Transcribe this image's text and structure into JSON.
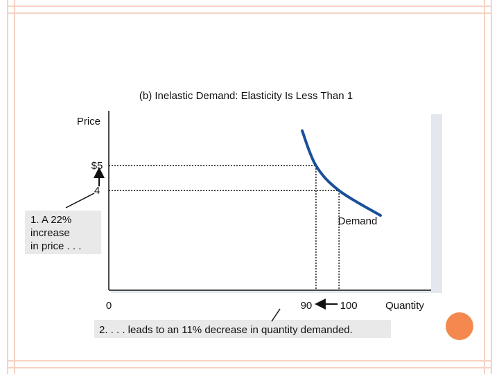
{
  "chart_data": {
    "type": "line",
    "title": "(b) Inelastic Demand: Elasticity Is Less Than 1",
    "ylabel": "Price",
    "xlabel": "Quantity",
    "origin_label": "0",
    "series": [
      {
        "name": "Demand",
        "color": "#1a4f9a",
        "points": [
          {
            "x": 84,
            "y": 6.4
          },
          {
            "x": 90,
            "y": 5.0
          },
          {
            "x": 100,
            "y": 4.0
          },
          {
            "x": 118,
            "y": 3.0
          }
        ]
      }
    ],
    "ylim": [
      0,
      7.2
    ],
    "xlim": [
      0,
      140
    ],
    "y_ticks": [
      {
        "value": 5,
        "label": "$5"
      },
      {
        "value": 4,
        "label": "4"
      }
    ],
    "x_ticks": [
      {
        "value": 90,
        "label": "90"
      },
      {
        "value": 100,
        "label": "100"
      }
    ],
    "reference_points": [
      {
        "x": 90,
        "y": 5
      },
      {
        "x": 100,
        "y": 4
      }
    ],
    "annotations": {
      "price_note_lines": [
        "1. A 22%",
        "increase",
        "in price . . ."
      ],
      "quantity_note": "2. . . . leads to an 11% decrease in quantity demanded."
    },
    "colors": {
      "curve": "#1a4f9a",
      "panel_shadow": "#e4e7ee",
      "note_bg": "#e9e9e9"
    }
  }
}
